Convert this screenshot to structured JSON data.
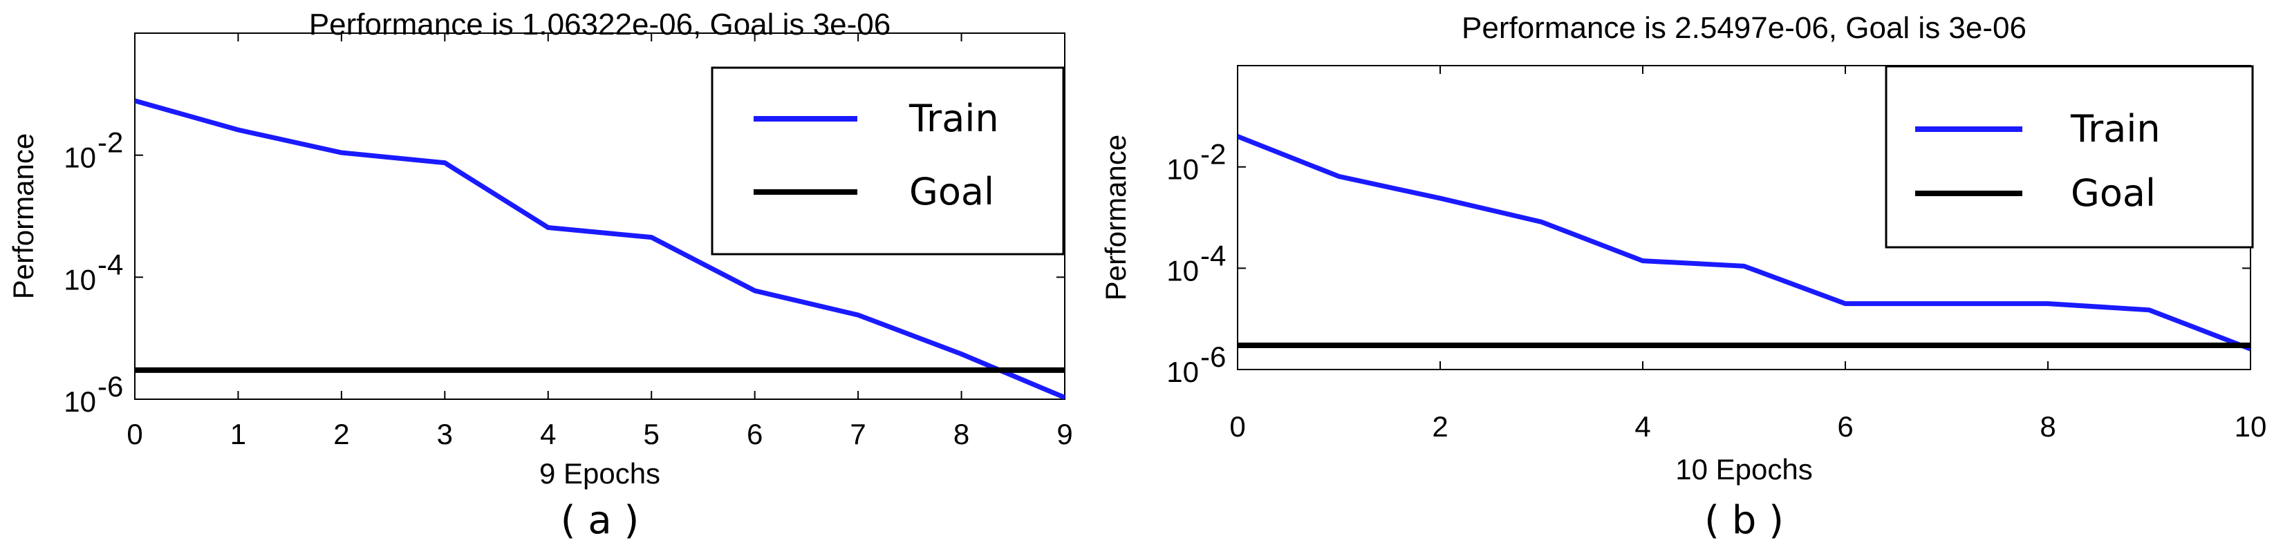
{
  "chart_data": [
    {
      "type": "line",
      "title": "Performance is 1.06322e-06, Goal is 3e-06",
      "xlabel": "9 Epochs",
      "ylabel": "Performance",
      "panel_label": "( a )",
      "xlim": [
        0,
        9
      ],
      "ylim": [
        1e-06,
        1
      ],
      "yscale": "log",
      "xticks": [
        "0",
        "1",
        "2",
        "3",
        "4",
        "5",
        "6",
        "7",
        "8",
        "9"
      ],
      "yticks": [
        {
          "base": "10",
          "exp": "-6"
        },
        {
          "base": "10",
          "exp": "-4"
        },
        {
          "base": "10",
          "exp": "-2"
        }
      ],
      "legend_position": "top-right",
      "series": [
        {
          "name": "Train",
          "color": "#1a1aff",
          "x": [
            0,
            1,
            2,
            3,
            4,
            5,
            6,
            7,
            8,
            9
          ],
          "y": [
            0.078,
            0.026,
            0.011,
            0.0075,
            0.00065,
            0.00045,
            6e-05,
            2.4e-05,
            5.5e-06,
            1.06322e-06
          ]
        },
        {
          "name": "Goal",
          "color": "#000000",
          "x": [
            0,
            9
          ],
          "y": [
            3e-06,
            3e-06
          ]
        }
      ]
    },
    {
      "type": "line",
      "title": "Performance is 2.5497e-06, Goal is 3e-06",
      "xlabel": "10 Epochs",
      "ylabel": "Performance",
      "panel_label": "( b )",
      "xlim": [
        0,
        10
      ],
      "ylim": [
        1e-06,
        1
      ],
      "yscale": "log",
      "xticks": [
        "0",
        "2",
        "4",
        "6",
        "8",
        "10"
      ],
      "yticks": [
        {
          "base": "10",
          "exp": "-6"
        },
        {
          "base": "10",
          "exp": "-4"
        },
        {
          "base": "10",
          "exp": "-2"
        }
      ],
      "legend_position": "top-right",
      "series": [
        {
          "name": "Train",
          "color": "#1a1aff",
          "x": [
            0,
            1,
            2,
            3,
            4,
            5,
            6,
            7,
            8,
            9,
            10
          ],
          "y": [
            0.04,
            0.0065,
            0.0024,
            0.00082,
            0.00014,
            0.00011,
            2e-05,
            2e-05,
            2e-05,
            1.5e-05,
            2.5497e-06
          ]
        },
        {
          "name": "Goal",
          "color": "#000000",
          "x": [
            0,
            10
          ],
          "y": [
            3e-06,
            3e-06
          ]
        }
      ]
    }
  ]
}
